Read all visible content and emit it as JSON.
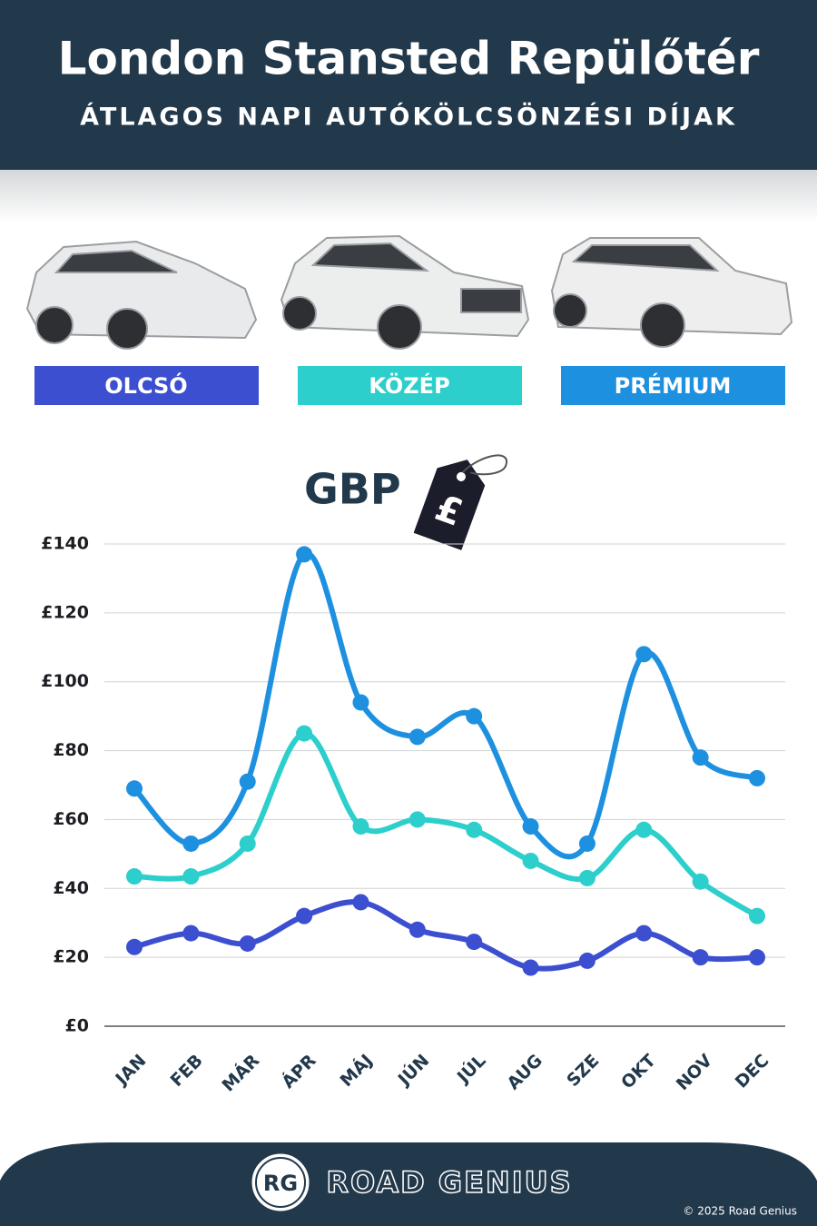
{
  "chart_data": {
    "type": "line",
    "title": "London Stansted Repülőtér",
    "subtitle": "ÁTLAGOS NAPI AUTÓKÖLCSÖNZÉSI DÍJAK",
    "currency": "GBP",
    "currency_symbol": "£",
    "categories": [
      "JAN",
      "FEB",
      "MÁR",
      "ÁPR",
      "MÁJ",
      "JÚN",
      "JÚL",
      "AUG",
      "SZE",
      "OKT",
      "NOV",
      "DEC"
    ],
    "series": [
      {
        "name": "OLCSÓ",
        "color": "#3b4fd0",
        "values": [
          23,
          27,
          24,
          32,
          36,
          28,
          24.5,
          17,
          19,
          27,
          20,
          20
        ]
      },
      {
        "name": "KÖZÉP",
        "color": "#2ccfcb",
        "values": [
          43.5,
          43.5,
          53,
          85,
          58,
          60,
          57,
          48,
          43,
          57,
          42,
          32
        ]
      },
      {
        "name": "PRÉMIUM",
        "color": "#1e90e0",
        "values": [
          69,
          53,
          71,
          137,
          94,
          84,
          90,
          58,
          53,
          108,
          78,
          72
        ]
      }
    ],
    "ylim": [
      0,
      140
    ],
    "yticks": [
      {
        "value": 0,
        "label": "£0"
      },
      {
        "value": 20,
        "label": "£20"
      },
      {
        "value": 40,
        "label": "£40"
      },
      {
        "value": 60,
        "label": "£60"
      },
      {
        "value": 80,
        "label": "£80"
      },
      {
        "value": 100,
        "label": "£100"
      },
      {
        "value": 120,
        "label": "£120"
      },
      {
        "value": 140,
        "label": "£140"
      }
    ],
    "grid": true
  },
  "footer": {
    "logo": "RG",
    "brand": "ROAD GENIUS",
    "copyright": "© 2025 Road Genius"
  }
}
